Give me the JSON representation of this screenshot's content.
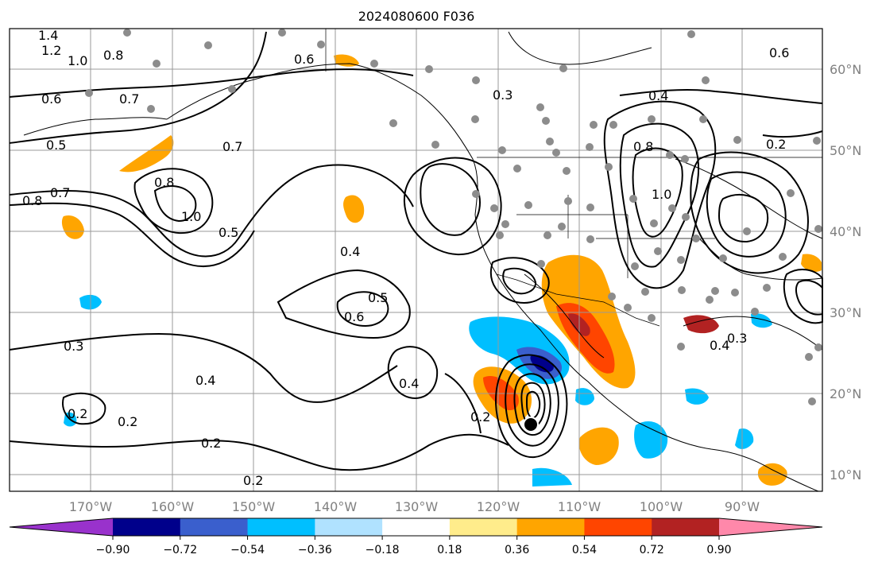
{
  "title": "2024080600 F036",
  "lon_labels": [
    "170°W",
    "160°W",
    "150°W",
    "140°W",
    "130°W",
    "120°W",
    "110°W",
    "100°W",
    "90°W"
  ],
  "lat_labels": [
    "60°N",
    "50°N",
    "40°N",
    "30°N",
    "20°N",
    "10°N"
  ],
  "colorbar": {
    "tick_labels": [
      "−0.90",
      "−0.72",
      "−0.54",
      "−0.36",
      "−0.18",
      "0.18",
      "0.36",
      "0.54",
      "0.72",
      "0.90"
    ],
    "colors": [
      "#9932cc",
      "#00008b",
      "#3a5fcd",
      "#00bfff",
      "#b0e2ff",
      "#ffffff",
      "#ffec8b",
      "#ffa500",
      "#ff4500",
      "#b22222",
      "#ff88aa"
    ]
  },
  "contour_labels": [
    "1.4",
    "1.2",
    "1.0",
    "0.8",
    "0.6",
    "0.7",
    "0.6",
    "0.5",
    "0.7",
    "0.8",
    "0.8",
    "0.7",
    "1.0",
    "0.5",
    "0.4",
    "0.6",
    "0.5",
    "0.3",
    "0.3",
    "0.4",
    "0.2",
    "0.2",
    "0.2",
    "0.2",
    "0.4",
    "0.2",
    "1.0",
    "0.8",
    "0.6",
    "0.4",
    "0.2",
    "0.4",
    "0.3"
  ],
  "colors": {
    "grid": "#999999",
    "contour": "#000000",
    "coast": "#000000",
    "station": "#8c8c8c"
  }
}
